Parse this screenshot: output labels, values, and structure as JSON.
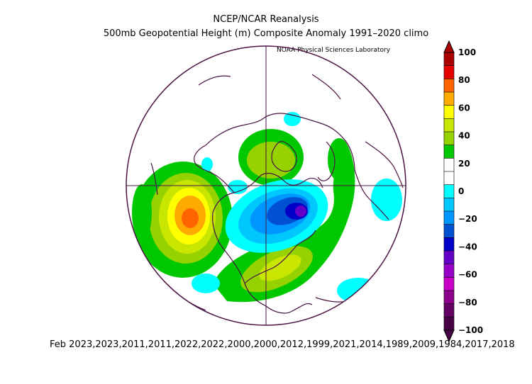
{
  "header": {
    "title": "NCEP/NCAR Reanalysis",
    "subtitle": "500mb Geopotential Height (m) Composite Anomaly 1991–2020 climo",
    "credit": "NOAA Physical Sciences Laboratory"
  },
  "footer": {
    "dates": "Feb 2023,2023,2011,2011,2022,2022,2000,2000,2012,1999,2021,2014,1989,2009,1984,2017,2018"
  },
  "map": {
    "projection": "polar stereographic",
    "hemisphere": "northern",
    "colors": {
      "coastline": "#4a1442",
      "grid": "#4a1442",
      "circle": "#4a1442"
    }
  },
  "colorbar": {
    "tick_labels": [
      "100",
      "80",
      "60",
      "40",
      "20",
      "0",
      "−20",
      "−40",
      "−60",
      "−80",
      "−100"
    ],
    "colors": [
      "#aa0000",
      "#e60000",
      "#ff6400",
      "#ffaa00",
      "#ffff00",
      "#c8e600",
      "#96d200",
      "#00c800",
      "#ffffff",
      "#ffffff",
      "#00ffff",
      "#00c8ff",
      "#0096ff",
      "#0050d2",
      "#0000c8",
      "#6400c8",
      "#9600c8",
      "#c800c8",
      "#8c008c",
      "#640064",
      "#460046"
    ]
  }
}
